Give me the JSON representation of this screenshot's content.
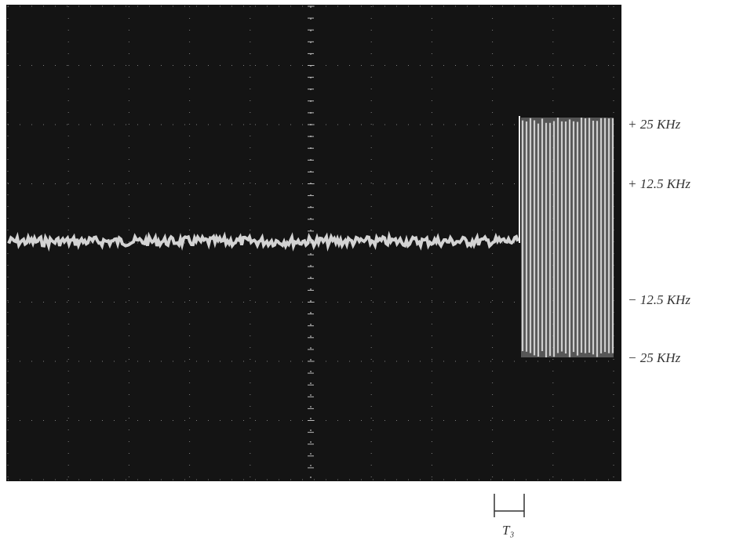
{
  "annotations": {
    "levels": [
      "+ 25 KHz",
      "+ 12.5 KHz",
      "− 12.5 KHz",
      "− 25 KHz"
    ],
    "interval": "T₃"
  }
}
